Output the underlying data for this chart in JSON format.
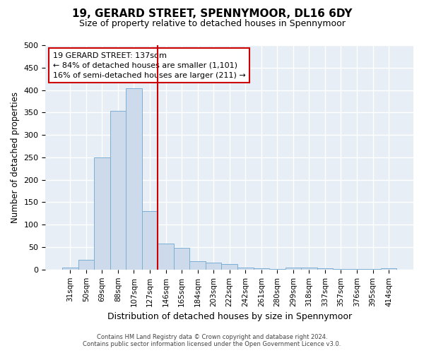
{
  "title": "19, GERARD STREET, SPENNYMOOR, DL16 6DY",
  "subtitle": "Size of property relative to detached houses in Spennymoor",
  "xlabel": "Distribution of detached houses by size in Spennymoor",
  "ylabel": "Number of detached properties",
  "property_label": "19 GERARD STREET: 137sqm",
  "pct_smaller": 84,
  "n_smaller": "1,101",
  "pct_larger": 16,
  "n_larger": 211,
  "bar_labels": [
    "31sqm",
    "50sqm",
    "69sqm",
    "88sqm",
    "107sqm",
    "127sqm",
    "146sqm",
    "165sqm",
    "184sqm",
    "203sqm",
    "222sqm",
    "242sqm",
    "261sqm",
    "280sqm",
    "299sqm",
    "318sqm",
    "337sqm",
    "357sqm",
    "376sqm",
    "395sqm",
    "414sqm"
  ],
  "bar_values": [
    5,
    22,
    250,
    353,
    404,
    130,
    58,
    48,
    18,
    15,
    13,
    5,
    3,
    1,
    5,
    5,
    3,
    1,
    2,
    1,
    3
  ],
  "bar_color": "#ccdaeb",
  "bar_edge_color": "#7bafd4",
  "vline_color": "#cc0000",
  "vline_position": 5.5,
  "ylim": [
    0,
    500
  ],
  "yticks": [
    0,
    50,
    100,
    150,
    200,
    250,
    300,
    350,
    400,
    450,
    500
  ],
  "footer_line1": "Contains HM Land Registry data © Crown copyright and database right 2024.",
  "footer_line2": "Contains public sector information licensed under the Open Government Licence v3.0.",
  "plot_bg_color": "#e8eef5"
}
